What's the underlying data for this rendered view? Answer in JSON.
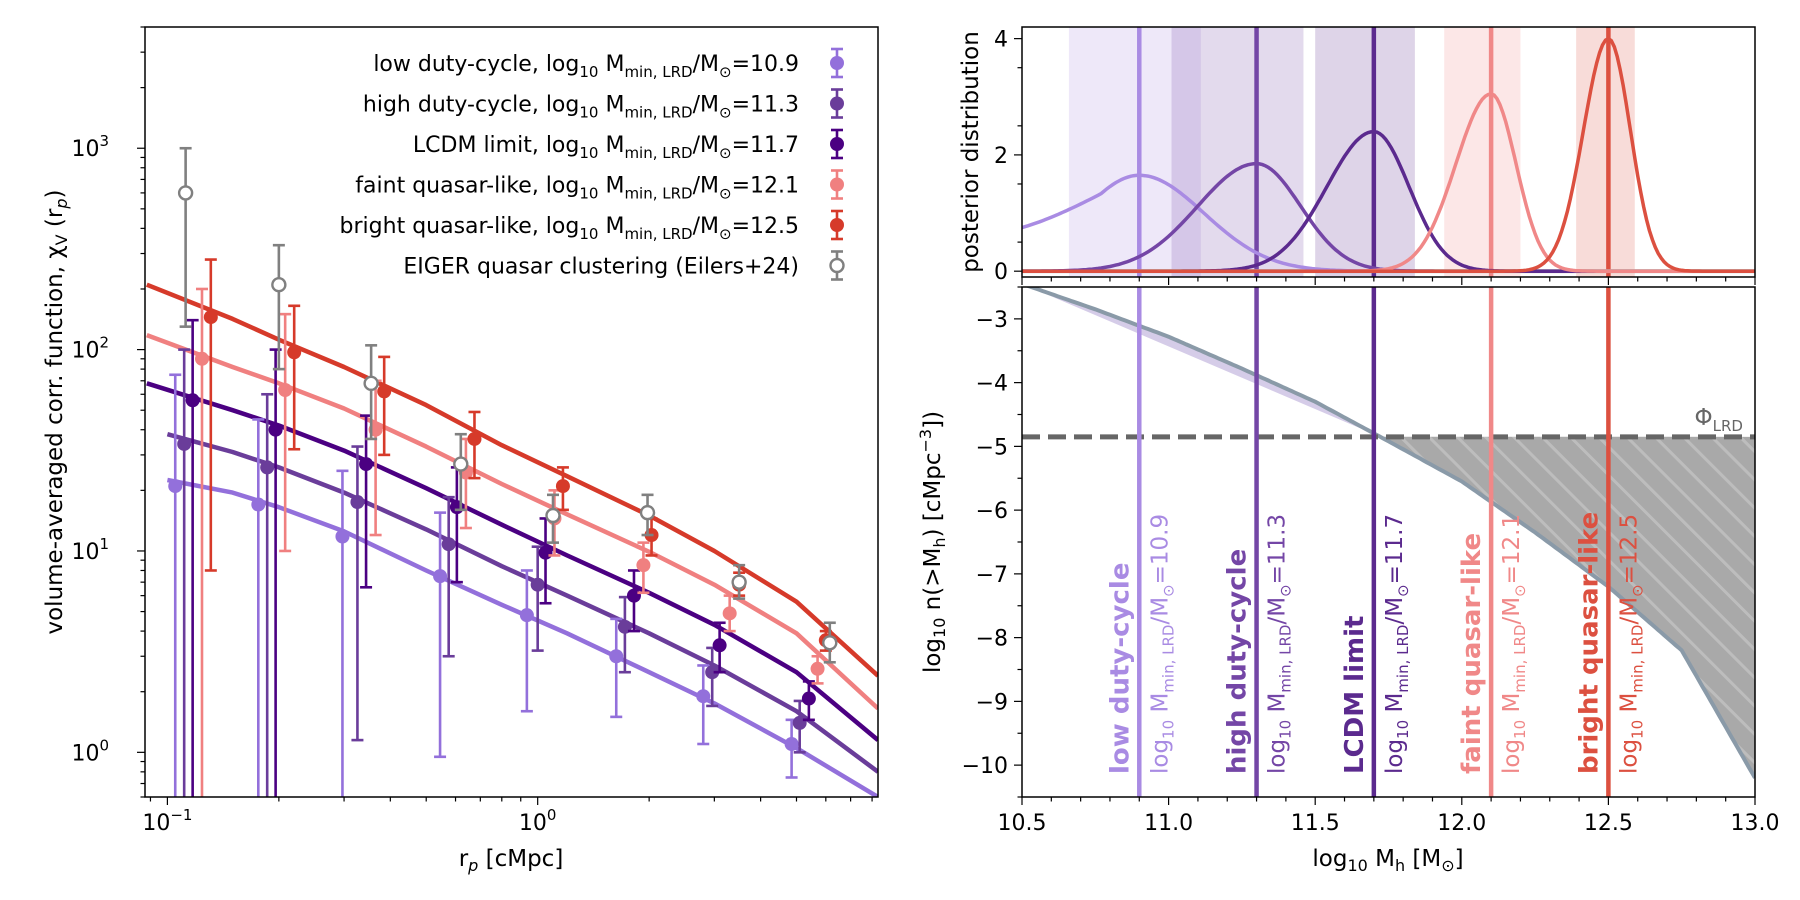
{
  "figure_title": "",
  "chart_data": [
    {
      "type": "scatter",
      "title": "",
      "xlabel": "r_p [cMpc]",
      "ylabel": "volume-averaged corr. function, χ_V (r_p)",
      "xscale": "log",
      "yscale": "log",
      "xlim": [
        0.087,
        8.3
      ],
      "ylim": [
        0.6,
        4000
      ],
      "x_ticks": [
        {
          "value": 0.1,
          "label": "10",
          "exp": "−1"
        },
        {
          "value": 1,
          "label": "10",
          "exp": "0"
        }
      ],
      "y_ticks": [
        {
          "value": 1,
          "label": "10",
          "exp": "0"
        },
        {
          "value": 10,
          "label": "10",
          "exp": "1"
        },
        {
          "value": 100,
          "label": "10",
          "exp": "2"
        },
        {
          "value": 1000,
          "label": "10",
          "exp": "3"
        }
      ],
      "legend_position": "top-right",
      "series": [
        {
          "name": "low duty-cycle, log10 Mmin,LRD/M⊙=10.9",
          "legend_main": "low duty-cycle, log",
          "legend_sub1": "10",
          "legend_mid": " M",
          "legend_sub2": "min, LRD",
          "legend_end": "/M",
          "legend_sub3": "⊙",
          "legend_val": "=10.9",
          "color": "#9370DB",
          "model_x": [
            0.1,
            0.15,
            0.2,
            0.3,
            0.5,
            0.8,
            1.2,
            2,
            3,
            5,
            8.3
          ],
          "model_y": [
            22.5,
            19.5,
            16.5,
            12.5,
            8.0,
            5.4,
            3.9,
            2.5,
            1.75,
            1.05,
            0.6
          ],
          "points": [
            {
              "x": 0.105,
              "y": 21.0,
              "lo": 0.3,
              "hi": 75
            },
            {
              "x": 0.176,
              "y": 17.0,
              "lo": 0.3,
              "hi": 45
            },
            {
              "x": 0.297,
              "y": 11.8,
              "lo": 0.3,
              "hi": 25
            },
            {
              "x": 0.545,
              "y": 7.5,
              "lo": 0.95,
              "hi": 15.5
            },
            {
              "x": 0.935,
              "y": 4.8,
              "lo": 1.6,
              "hi": 8.0
            },
            {
              "x": 1.63,
              "y": 3.0,
              "lo": 1.5,
              "hi": 4.6
            },
            {
              "x": 2.8,
              "y": 1.9,
              "lo": 1.1,
              "hi": 2.7
            },
            {
              "x": 4.85,
              "y": 1.1,
              "lo": 0.75,
              "hi": 1.45
            }
          ]
        },
        {
          "name": "high duty-cycle, log10 Mmin,LRD/M⊙=11.3",
          "legend_main": "high duty-cycle, log",
          "legend_sub1": "10",
          "legend_mid": " M",
          "legend_sub2": "min, LRD",
          "legend_end": "/M",
          "legend_sub3": "⊙",
          "legend_val": "=11.3",
          "color": "#6A3D9A",
          "model_x": [
            0.1,
            0.15,
            0.2,
            0.3,
            0.5,
            0.8,
            1.2,
            2,
            3,
            5,
            8.3
          ],
          "model_y": [
            38,
            31,
            26,
            19.5,
            12.8,
            8.4,
            6.0,
            3.9,
            2.7,
            1.6,
            0.8
          ],
          "points": [
            {
              "x": 0.111,
              "y": 34.0,
              "lo": 0.3,
              "hi": 100
            },
            {
              "x": 0.186,
              "y": 26.0,
              "lo": 0.3,
              "hi": 60
            },
            {
              "x": 0.326,
              "y": 17.5,
              "lo": 1.15,
              "hi": 33
            },
            {
              "x": 0.575,
              "y": 10.8,
              "lo": 3.0,
              "hi": 18.5
            },
            {
              "x": 1.0,
              "y": 6.8,
              "lo": 3.2,
              "hi": 10.5
            },
            {
              "x": 1.72,
              "y": 4.2,
              "lo": 2.5,
              "hi": 5.9
            },
            {
              "x": 2.96,
              "y": 2.5,
              "lo": 1.7,
              "hi": 3.3
            },
            {
              "x": 5.1,
              "y": 1.4,
              "lo": 1.0,
              "hi": 1.8
            }
          ]
        },
        {
          "name": "LCDM limit, log10 Mmin,LRD/M⊙=11.7",
          "legend_main": "LCDM limit, log",
          "legend_sub1": "10",
          "legend_mid": " M",
          "legend_sub2": "min, LRD",
          "legend_end": "/M",
          "legend_sub3": "⊙",
          "legend_val": "=11.7",
          "color": "#4B0082",
          "model_x": [
            0.088,
            0.15,
            0.2,
            0.3,
            0.5,
            0.8,
            1.2,
            2,
            3,
            5,
            8.3
          ],
          "model_y": [
            68,
            50,
            42,
            31.5,
            20.5,
            13.5,
            9.5,
            6.2,
            4.3,
            2.5,
            1.15
          ],
          "points": [
            {
              "x": 0.117,
              "y": 56.0,
              "lo": 0.3,
              "hi": 140
            },
            {
              "x": 0.196,
              "y": 40.0,
              "lo": 0.3,
              "hi": 100
            },
            {
              "x": 0.344,
              "y": 27.0,
              "lo": 6.6,
              "hi": 47
            },
            {
              "x": 0.605,
              "y": 16.5,
              "lo": 7.0,
              "hi": 26
            },
            {
              "x": 1.05,
              "y": 9.8,
              "lo": 5.5,
              "hi": 14.5
            },
            {
              "x": 1.82,
              "y": 6.0,
              "lo": 4.0,
              "hi": 8.0
            },
            {
              "x": 3.1,
              "y": 3.4,
              "lo": 2.5,
              "hi": 4.4
            },
            {
              "x": 5.4,
              "y": 1.85,
              "lo": 1.45,
              "hi": 2.25
            }
          ]
        },
        {
          "name": "faint quasar-like, log10 Mmin,LRD/M⊙=12.1",
          "legend_main": "faint quasar-like, log",
          "legend_sub1": "10",
          "legend_mid": " M",
          "legend_sub2": "min, LRD",
          "legend_end": "/M",
          "legend_sub3": "⊙",
          "legend_val": "=12.1",
          "color": "#F08080",
          "model_x": [
            0.088,
            0.15,
            0.2,
            0.3,
            0.5,
            0.8,
            1.2,
            2,
            3,
            5,
            8.3
          ],
          "model_y": [
            118,
            82,
            68,
            51,
            33,
            21.5,
            15.2,
            9.9,
            6.8,
            3.9,
            1.65
          ],
          "points": [
            {
              "x": 0.124,
              "y": 90.0,
              "lo": 0.3,
              "hi": 200
            },
            {
              "x": 0.208,
              "y": 63.0,
              "lo": 10,
              "hi": 150
            },
            {
              "x": 0.365,
              "y": 40.0,
              "lo": 12,
              "hi": 70
            },
            {
              "x": 0.64,
              "y": 24.5,
              "lo": 13,
              "hi": 36
            },
            {
              "x": 1.11,
              "y": 14.5,
              "lo": 9.5,
              "hi": 20
            },
            {
              "x": 1.93,
              "y": 8.5,
              "lo": 6.2,
              "hi": 11
            },
            {
              "x": 3.3,
              "y": 4.9,
              "lo": 4.0,
              "hi": 6.0
            },
            {
              "x": 5.7,
              "y": 2.6,
              "lo": 2.2,
              "hi": 3.0
            }
          ]
        },
        {
          "name": "bright quasar-like, log10 Mmin,LRD/M⊙=12.5",
          "legend_main": "bright quasar-like, log",
          "legend_sub1": "10",
          "legend_mid": " M",
          "legend_sub2": "min, LRD",
          "legend_end": "/M",
          "legend_sub3": "⊙",
          "legend_val": "=12.5",
          "color": "#D63A2A",
          "model_x": [
            0.088,
            0.15,
            0.2,
            0.3,
            0.5,
            0.8,
            1.2,
            2,
            3,
            5,
            8.3
          ],
          "model_y": [
            210,
            142,
            112,
            82,
            53,
            33.5,
            23.5,
            15,
            10,
            5.6,
            2.4
          ],
          "points": [
            {
              "x": 0.131,
              "y": 145.0,
              "lo": 8,
              "hi": 280
            },
            {
              "x": 0.22,
              "y": 97.0,
              "lo": 32,
              "hi": 165
            },
            {
              "x": 0.385,
              "y": 62.0,
              "lo": 30,
              "hi": 92
            },
            {
              "x": 0.675,
              "y": 36.0,
              "lo": 23,
              "hi": 49
            },
            {
              "x": 1.17,
              "y": 21.0,
              "lo": 16,
              "hi": 26
            },
            {
              "x": 2.03,
              "y": 12.0,
              "lo": 9.5,
              "hi": 14.5
            },
            {
              "x": 3.5,
              "y": 6.8,
              "lo": 6.0,
              "hi": 7.8
            },
            {
              "x": 6.0,
              "y": 3.6,
              "lo": 3.2,
              "hi": 4.0
            }
          ]
        },
        {
          "name": "EIGER quasar clustering (Eilers+24)",
          "legend_main": "EIGER quasar clustering (Eilers+24)",
          "color": "#808080",
          "hollow": true,
          "points": [
            {
              "x": 0.112,
              "y": 600,
              "lo": 130,
              "hi": 1000
            },
            {
              "x": 0.2,
              "y": 210,
              "lo": 80,
              "hi": 330
            },
            {
              "x": 0.355,
              "y": 68,
              "lo": 36,
              "hi": 105
            },
            {
              "x": 0.62,
              "y": 27,
              "lo": 16,
              "hi": 38
            },
            {
              "x": 1.1,
              "y": 15,
              "lo": 11,
              "hi": 19
            },
            {
              "x": 1.98,
              "y": 15.5,
              "lo": 12,
              "hi": 19
            },
            {
              "x": 3.5,
              "y": 7.0,
              "lo": 5.8,
              "hi": 8.5
            },
            {
              "x": 6.15,
              "y": 3.5,
              "lo": 2.8,
              "hi": 4.4
            }
          ]
        }
      ]
    },
    {
      "type": "line",
      "title": "",
      "xlabel": "",
      "ylabel": "posterior distribution",
      "xlim": [
        10.5,
        13.0
      ],
      "ylim": [
        -0.1,
        4.2
      ],
      "y_ticks": [
        0,
        2,
        4
      ],
      "series": [
        {
          "name": "low duty-cycle",
          "color": "#A98BE3",
          "peak": 10.9,
          "height": 1.65,
          "sigma_left": 0.2,
          "sigma_right": 0.22,
          "floor_left": 0.75,
          "band": [
            10.66,
            11.11
          ]
        },
        {
          "name": "high duty-cycle",
          "color": "#7446A6",
          "peak": 11.3,
          "height": 1.85,
          "sigma_left": 0.2,
          "sigma_right": 0.15,
          "band": [
            11.01,
            11.46
          ]
        },
        {
          "name": "LCDM limit",
          "color": "#5B2A8E",
          "peak": 11.7,
          "height": 2.4,
          "sigma_left": 0.16,
          "sigma_right": 0.12,
          "band": [
            11.5,
            11.84
          ]
        },
        {
          "name": "faint quasar-like",
          "color": "#F08888",
          "peak": 12.1,
          "height": 3.05,
          "sigma_left": 0.12,
          "sigma_right": 0.085,
          "band": [
            11.94,
            12.2
          ]
        },
        {
          "name": "bright quasar-like",
          "color": "#DC5040",
          "peak": 12.5,
          "height": 4.0,
          "sigma_left": 0.085,
          "sigma_right": 0.075,
          "band": [
            12.39,
            12.59
          ]
        }
      ]
    },
    {
      "type": "line",
      "title": "",
      "xlabel": "log10 Mh [M⊙]",
      "ylabel": "log10 n(>Mh) [cMpc−3])",
      "xlim": [
        10.5,
        13.0
      ],
      "ylim": [
        -10.5,
        -2.5
      ],
      "x_ticks": [
        "10.5",
        "11.0",
        "11.5",
        "12.0",
        "12.5",
        "13.0"
      ],
      "y_ticks": [
        "−3",
        "−4",
        "−5",
        "−6",
        "−7",
        "−8",
        "−9",
        "−10"
      ],
      "phi_lrd_value": -4.85,
      "phi_lrd_label": "Φ",
      "phi_lrd_sub": "LRD",
      "hmf_curve": {
        "x": [
          10.5,
          10.75,
          11.0,
          11.25,
          11.5,
          11.75,
          12.0,
          12.25,
          12.5,
          12.75,
          13.0
        ],
        "y": [
          -2.45,
          -2.85,
          -3.28,
          -3.78,
          -4.3,
          -4.92,
          -5.55,
          -6.35,
          -7.2,
          -8.2,
          -10.2
        ]
      },
      "vertical_lines": [
        {
          "x": 10.9,
          "color": "#A98BE3",
          "bold_label": "low duty-cycle",
          "sub_label": "log",
          "sub_suffix": "10",
          "sub_rest": " M",
          "sub_rest2": "min, LRD",
          "sub_rest3": "/M",
          "sub_rest4": "⊙",
          "sub_value": "=10.9"
        },
        {
          "x": 11.3,
          "color": "#7446A6",
          "bold_label": "high duty-cycle",
          "sub_label": "log",
          "sub_suffix": "10",
          "sub_rest": " M",
          "sub_rest2": "min, LRD",
          "sub_rest3": "/M",
          "sub_rest4": "⊙",
          "sub_value": "=11.3"
        },
        {
          "x": 11.7,
          "color": "#5B2A8E",
          "bold_label": "LCDM limit",
          "sub_label": "log",
          "sub_suffix": "10",
          "sub_rest": " M",
          "sub_rest2": "min, LRD",
          "sub_rest3": "/M",
          "sub_rest4": "⊙",
          "sub_value": "=11.7"
        },
        {
          "x": 12.1,
          "color": "#F08888",
          "bold_label": "faint quasar-like",
          "sub_label": "log",
          "sub_suffix": "10",
          "sub_rest": " M",
          "sub_rest2": "min, LRD",
          "sub_rest3": "/M",
          "sub_rest4": "⊙",
          "sub_value": "=12.1"
        },
        {
          "x": 12.5,
          "color": "#DC5040",
          "bold_label": "bright quasar-like",
          "sub_label": "log",
          "sub_suffix": "10",
          "sub_rest": " M",
          "sub_rest2": "min, LRD",
          "sub_rest3": "/M",
          "sub_rest4": "⊙",
          "sub_value": "=12.5"
        }
      ]
    }
  ]
}
